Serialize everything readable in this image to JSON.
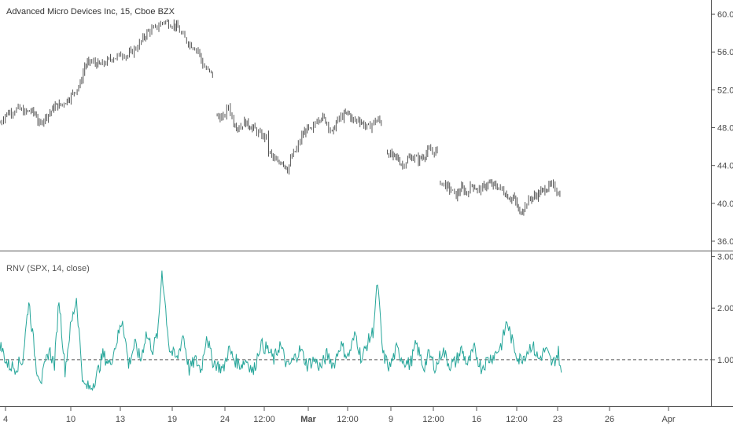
{
  "header": {
    "symbol_title": "Advanced Micro Devices Inc, 15, Cboe BZX"
  },
  "indicator": {
    "title": "RNV (SPX, 14, close)",
    "color": "#26a69a",
    "reference_level": 1.0
  },
  "colors": {
    "candles": "#555555",
    "grid_line": "#555555",
    "reference_line": "#555555"
  },
  "chart_data": [
    {
      "type": "candlestick",
      "title": "Advanced Micro Devices Inc, 15, Cboe BZX",
      "ylim": [
        35.0,
        61.5
      ],
      "y_ticks": [
        "60.00",
        "56.00",
        "52.00",
        "48.00",
        "44.00",
        "40.00",
        "36.00"
      ],
      "y_tick_values": [
        60,
        56,
        52,
        48,
        44,
        40,
        36
      ],
      "x_ticks": [
        "4",
        "10",
        "13",
        "19",
        "24",
        "12:00",
        "Mar",
        "12:00",
        "9",
        "12:00",
        "16",
        "12:00",
        "23",
        "26",
        "Apr"
      ],
      "price_path": [
        [
          0,
          48.5
        ],
        [
          0.7,
          49.4
        ],
        [
          1.5,
          49.7
        ],
        [
          2.4,
          50.0
        ],
        [
          3.3,
          49.6
        ],
        [
          4.1,
          49.8
        ],
        [
          4.8,
          49.3
        ],
        [
          5.2,
          48.2
        ],
        [
          5.8,
          49.0
        ],
        [
          6.6,
          49.6
        ],
        [
          7.3,
          50.3
        ],
        [
          8.0,
          50.4
        ],
        [
          8.7,
          50.8
        ],
        [
          9.2,
          51.2
        ],
        [
          9.8,
          51.8
        ],
        [
          10.6,
          52.6
        ],
        [
          11.2,
          54.5
        ],
        [
          11.9,
          55.0
        ],
        [
          12.6,
          54.8
        ],
        [
          13.3,
          54.6
        ],
        [
          14.0,
          54.9
        ],
        [
          14.8,
          55.4
        ],
        [
          15.5,
          55.5
        ],
        [
          16.2,
          55.8
        ],
        [
          16.9,
          55.6
        ],
        [
          17.5,
          56.1
        ],
        [
          18.2,
          56.6
        ],
        [
          18.9,
          57.4
        ],
        [
          19.6,
          58.2
        ],
        [
          20.3,
          58.4
        ],
        [
          21.0,
          58.8
        ],
        [
          21.7,
          59.3
        ],
        [
          22.3,
          59.0
        ],
        [
          23.0,
          58.9
        ],
        [
          23.5,
          58.5
        ],
        [
          24.2,
          57.6
        ],
        [
          24.9,
          57.0
        ],
        [
          25.5,
          56.6
        ],
        [
          26.2,
          56.2
        ],
        [
          26.8,
          54.6
        ],
        [
          27.5,
          54.0
        ],
        [
          28.3,
          53.5
        ],
        [
          28.7,
          49.2
        ],
        [
          29.5,
          49.0
        ],
        [
          30.2,
          50.3
        ],
        [
          30.9,
          48.5
        ],
        [
          31.6,
          48.0
        ],
        [
          32.3,
          48.6
        ],
        [
          33.0,
          48.2
        ],
        [
          33.7,
          47.8
        ],
        [
          34.4,
          47.2
        ],
        [
          35.2,
          47.0
        ],
        [
          35.5,
          45.5
        ],
        [
          36.1,
          44.8
        ],
        [
          36.7,
          44.2
        ],
        [
          37.3,
          44.5
        ],
        [
          38.0,
          43.6
        ],
        [
          38.6,
          45.0
        ],
        [
          39.2,
          45.7
        ],
        [
          39.9,
          47.1
        ],
        [
          40.6,
          47.9
        ],
        [
          41.2,
          47.6
        ],
        [
          41.9,
          48.9
        ],
        [
          42.5,
          49.2
        ],
        [
          43.2,
          48.6
        ],
        [
          43.9,
          47.4
        ],
        [
          44.6,
          48.8
        ],
        [
          45.3,
          49.2
        ],
        [
          46.0,
          49.6
        ],
        [
          46.7,
          48.7
        ],
        [
          47.4,
          48.9
        ],
        [
          48.1,
          48.3
        ],
        [
          48.7,
          48.0
        ],
        [
          49.4,
          48.6
        ],
        [
          50.0,
          48.8
        ],
        [
          50.6,
          48.4
        ],
        [
          51.2,
          45.4
        ],
        [
          51.8,
          45.0
        ],
        [
          52.5,
          44.8
        ],
        [
          53.2,
          44.0
        ],
        [
          53.9,
          44.7
        ],
        [
          54.6,
          44.9
        ],
        [
          55.3,
          44.6
        ],
        [
          56.0,
          45.0
        ],
        [
          56.7,
          45.6
        ],
        [
          57.4,
          45.4
        ],
        [
          58.0,
          45.7
        ],
        [
          58.2,
          42.3
        ],
        [
          58.9,
          41.9
        ],
        [
          59.6,
          41.4
        ],
        [
          60.3,
          40.8
        ],
        [
          61.0,
          41.6
        ],
        [
          61.7,
          41.1
        ],
        [
          62.4,
          42.0
        ],
        [
          63.1,
          41.4
        ],
        [
          63.8,
          41.6
        ],
        [
          64.5,
          42.1
        ],
        [
          65.2,
          41.9
        ],
        [
          65.9,
          41.7
        ],
        [
          66.6,
          41.2
        ],
        [
          67.3,
          40.6
        ],
        [
          68.0,
          40.5
        ],
        [
          68.7,
          38.9
        ],
        [
          69.4,
          39.8
        ],
        [
          70.1,
          40.5
        ],
        [
          70.8,
          40.8
        ],
        [
          71.5,
          41.2
        ],
        [
          72.2,
          41.6
        ],
        [
          72.9,
          41.9
        ],
        [
          73.6,
          41.4
        ],
        [
          74.2,
          40.6
        ]
      ],
      "gaps_after_x": [
        5.0,
        28.4,
        35.3,
        50.9,
        58.1
      ]
    },
    {
      "type": "line",
      "title": "RNV (SPX, 14, close)",
      "ylim": [
        0.1,
        3.1
      ],
      "y_ticks": [
        "3.00",
        "2.00",
        "1.00"
      ],
      "y_tick_values": [
        3,
        2,
        1
      ],
      "reference_line": 1.0,
      "peaks": [
        [
          0,
          1.3
        ],
        [
          1.0,
          0.9
        ],
        [
          2.0,
          0.85
        ],
        [
          3.0,
          1.0
        ],
        [
          3.8,
          2.15
        ],
        [
          4.8,
          0.85
        ],
        [
          5.5,
          0.6
        ],
        [
          6.5,
          1.2
        ],
        [
          7.2,
          0.9
        ],
        [
          7.8,
          2.2
        ],
        [
          8.6,
          0.8
        ],
        [
          9.3,
          1.6
        ],
        [
          10.1,
          2.2
        ],
        [
          11.0,
          0.5
        ],
        [
          12.0,
          0.45
        ],
        [
          12.8,
          0.7
        ],
        [
          13.6,
          1.1
        ],
        [
          14.5,
          0.9
        ],
        [
          15.5,
          1.4
        ],
        [
          16.2,
          1.8
        ],
        [
          17.0,
          0.9
        ],
        [
          17.8,
          1.3
        ],
        [
          18.6,
          1.0
        ],
        [
          19.3,
          1.5
        ],
        [
          20.2,
          1.2
        ],
        [
          20.9,
          1.55
        ],
        [
          21.4,
          2.75
        ],
        [
          22.4,
          1.2
        ],
        [
          23.4,
          1.0
        ],
        [
          24.2,
          1.5
        ],
        [
          25.0,
          0.8
        ],
        [
          25.8,
          1.0
        ],
        [
          26.6,
          0.8
        ],
        [
          27.3,
          1.5
        ],
        [
          28.0,
          1.0
        ],
        [
          28.7,
          0.9
        ],
        [
          29.5,
          0.8
        ],
        [
          30.2,
          1.2
        ],
        [
          31.0,
          1.0
        ],
        [
          31.8,
          0.9
        ],
        [
          32.6,
          1.0
        ],
        [
          33.5,
          0.75
        ],
        [
          34.4,
          1.3
        ],
        [
          35.4,
          1.2
        ],
        [
          36.2,
          1.0
        ],
        [
          37.0,
          1.3
        ],
        [
          38.0,
          0.85
        ],
        [
          38.8,
          1.0
        ],
        [
          39.7,
          1.2
        ],
        [
          40.6,
          0.9
        ],
        [
          41.5,
          1.0
        ],
        [
          42.4,
          0.85
        ],
        [
          43.2,
          1.1
        ],
        [
          44.1,
          0.9
        ],
        [
          45.0,
          1.3
        ],
        [
          46.0,
          1.05
        ],
        [
          47.0,
          1.5
        ],
        [
          47.8,
          1.0
        ],
        [
          48.5,
          1.3
        ],
        [
          49.3,
          1.55
        ],
        [
          49.9,
          2.5
        ],
        [
          50.6,
          1.1
        ],
        [
          51.5,
          0.85
        ],
        [
          52.4,
          1.2
        ],
        [
          53.3,
          1.0
        ],
        [
          54.2,
          0.9
        ],
        [
          55.0,
          1.3
        ],
        [
          56.0,
          0.85
        ],
        [
          56.7,
          1.1
        ],
        [
          57.6,
          0.85
        ],
        [
          58.5,
          1.2
        ],
        [
          59.4,
          0.9
        ],
        [
          60.2,
          0.95
        ],
        [
          61.0,
          1.2
        ],
        [
          61.8,
          0.9
        ],
        [
          62.7,
          1.2
        ],
        [
          63.6,
          0.85
        ],
        [
          64.5,
          1.0
        ],
        [
          65.4,
          1.1
        ],
        [
          66.3,
          1.3
        ],
        [
          67.0,
          1.75
        ],
        [
          67.8,
          1.3
        ],
        [
          68.6,
          1.0
        ],
        [
          69.4,
          1.1
        ],
        [
          70.3,
          1.3
        ],
        [
          71.2,
          1.0
        ],
        [
          72.1,
          1.2
        ],
        [
          73.0,
          0.9
        ],
        [
          73.8,
          1.15
        ],
        [
          74.2,
          0.75
        ]
      ]
    }
  ]
}
